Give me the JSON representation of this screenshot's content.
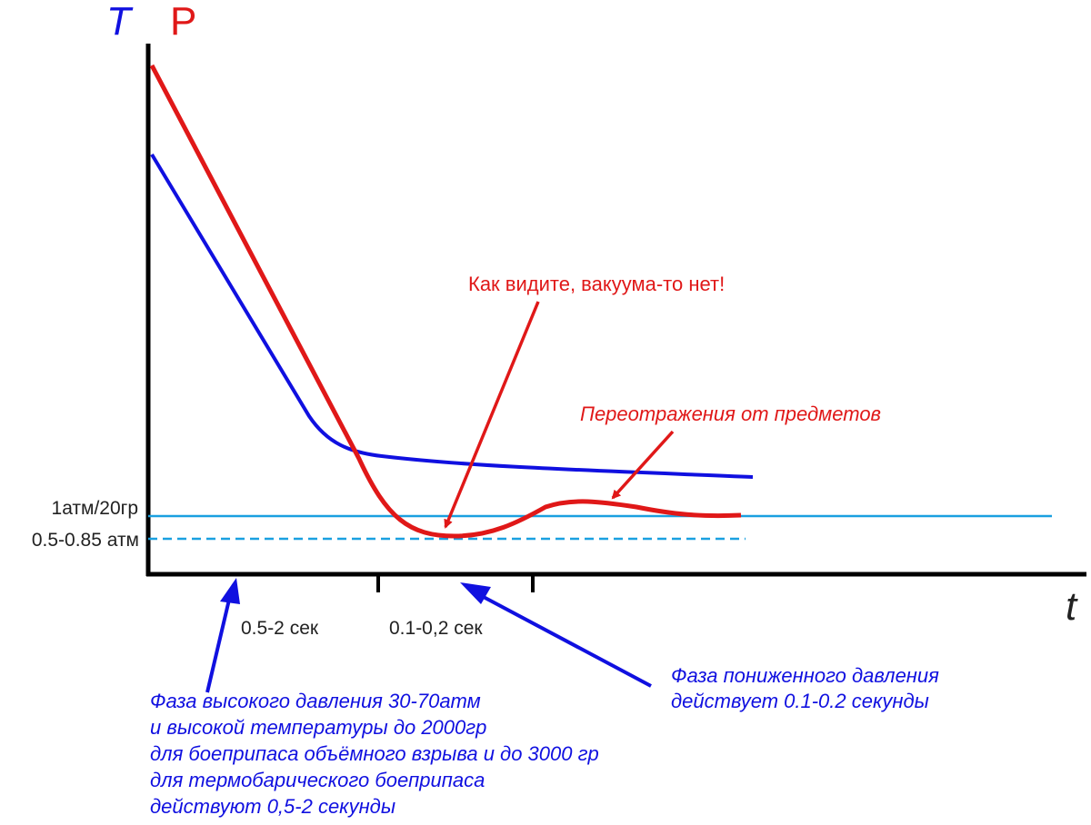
{
  "axes": {
    "y_label_T": "T",
    "y_label_P": "P",
    "x_label": "t",
    "colors": {
      "T": "#1010e0",
      "P": "#e01818",
      "axis": "#000000",
      "ref": "#1aa0e0"
    }
  },
  "reference_lines": {
    "atm_label": "1атм/20гр",
    "low_label": "0.5-0.85 атм"
  },
  "phases": {
    "phase1_duration": "0.5-2 сек",
    "phase2_duration": "0.1-0,2 сек"
  },
  "annotations": {
    "no_vacuum": "Как видите, вакуума-то нет!",
    "reflections": "Переотражения от предметов",
    "low_pressure": [
      "Фаза пониженного давления",
      "действует 0.1-0.2 секунды"
    ],
    "high_pressure": [
      "Фаза высокого давления 30-70атм",
      "и высокой температуры до 2000гр",
      "для боеприпаса объёмного взрыва и до 3000 гр",
      "для термобарического боеприпаса",
      "действуют 0,5-2 секунды"
    ]
  }
}
